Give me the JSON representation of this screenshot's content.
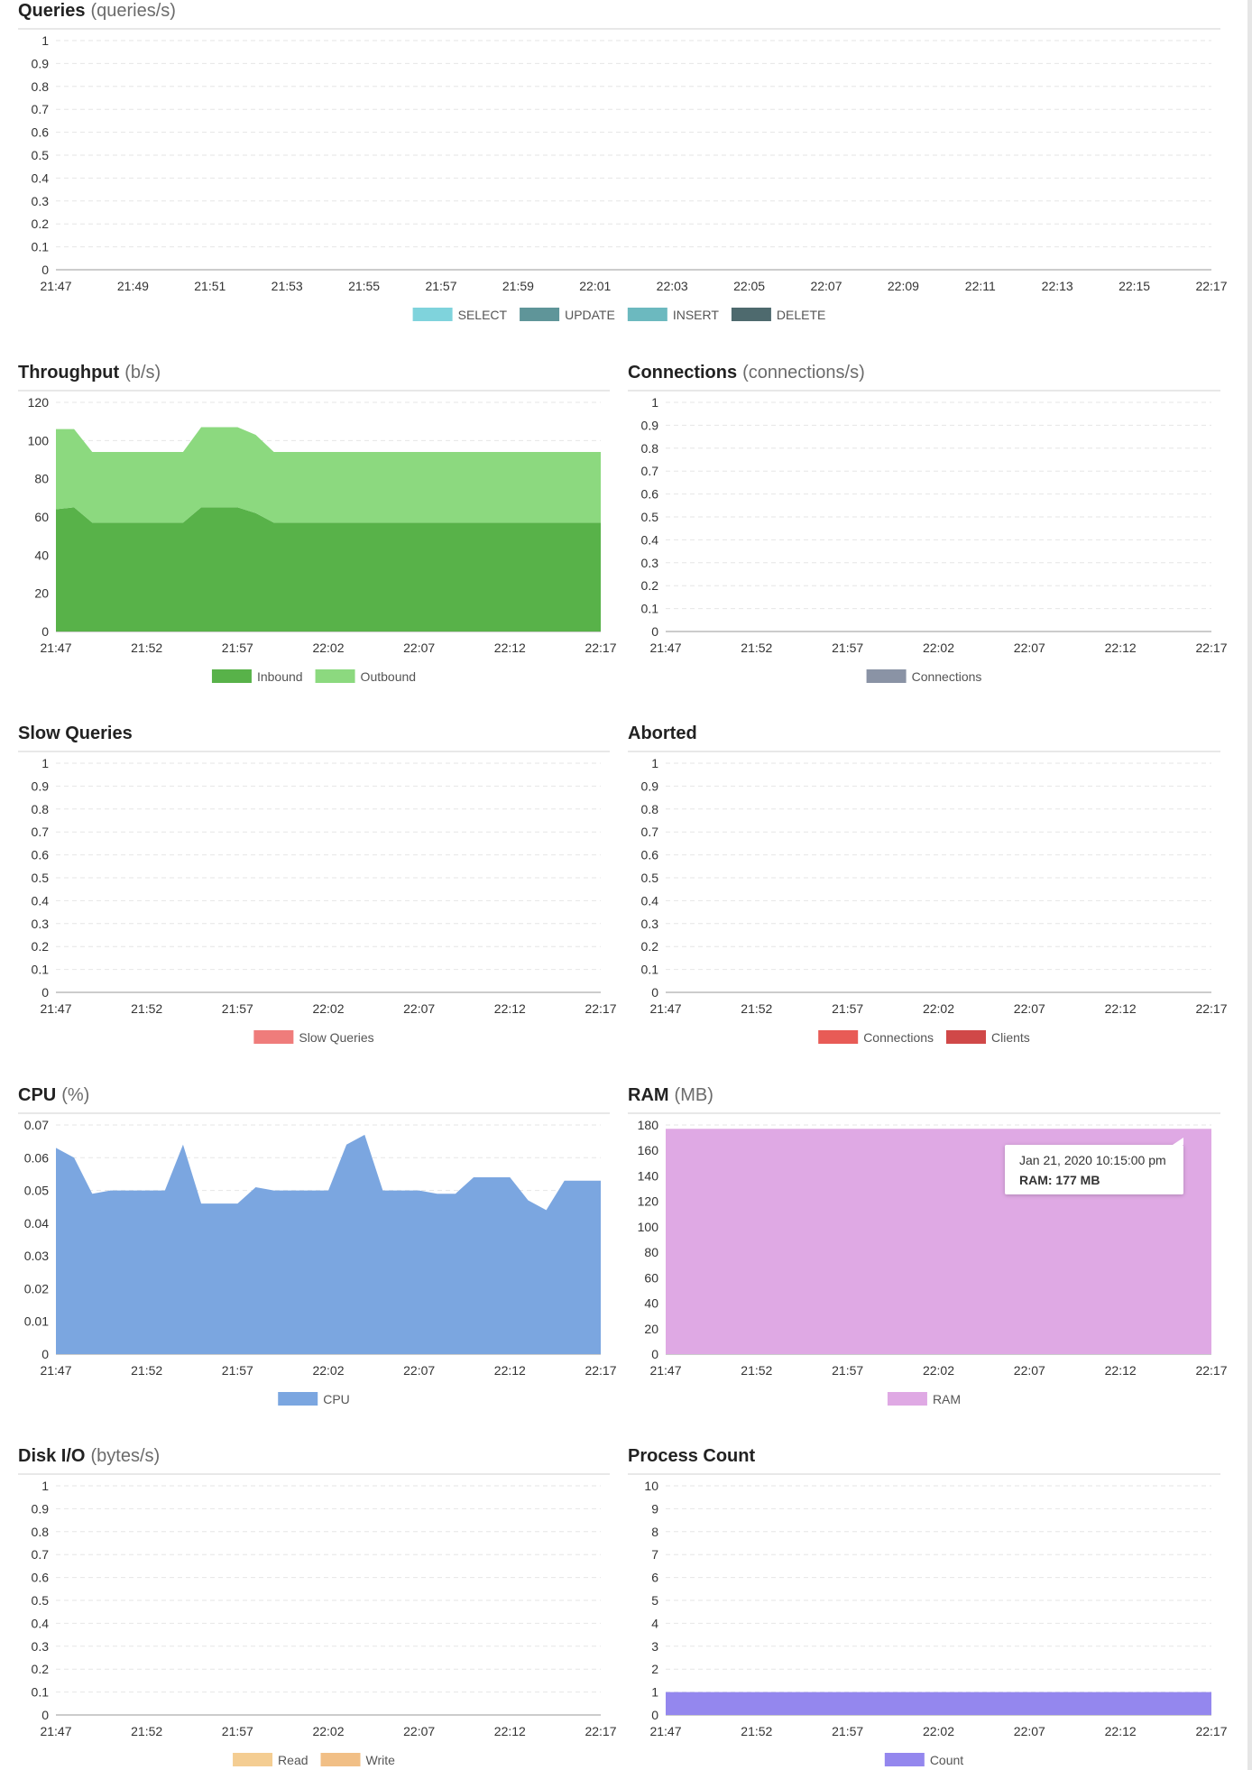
{
  "chart_data": [
    {
      "type": "area",
      "title": "Queries",
      "unit": "(queries/s)",
      "x": [
        "21:47",
        "21:48",
        "21:49",
        "21:50",
        "21:51",
        "21:52",
        "21:53",
        "21:54",
        "21:55",
        "21:56",
        "21:57",
        "21:58",
        "21:59",
        "22:00",
        "22:01",
        "22:02",
        "22:03",
        "22:04",
        "22:05",
        "22:06",
        "22:07",
        "22:08",
        "22:09",
        "22:10",
        "22:11",
        "22:12",
        "22:13",
        "22:14",
        "22:15",
        "22:16",
        "22:17"
      ],
      "xticks": [
        "21:47",
        "21:49",
        "21:51",
        "21:53",
        "21:55",
        "21:57",
        "21:59",
        "22:01",
        "22:03",
        "22:05",
        "22:07",
        "22:09",
        "22:11",
        "22:13",
        "22:15",
        "22:17"
      ],
      "ylim": [
        0,
        1
      ],
      "yticks": [
        0,
        0.1,
        0.2,
        0.3,
        0.4,
        0.5,
        0.6,
        0.7,
        0.8,
        0.9,
        1
      ],
      "grid": true,
      "series": [
        {
          "name": "SELECT",
          "color": "#7fd3dc",
          "values": [
            0,
            0,
            0,
            0,
            0,
            0,
            0,
            0,
            0,
            0,
            0,
            0,
            0,
            0,
            0,
            0,
            0,
            0,
            0,
            0,
            0,
            0,
            0,
            0,
            0,
            0,
            0,
            0,
            0,
            0,
            0
          ]
        },
        {
          "name": "UPDATE",
          "color": "#5f9599",
          "values": [
            0,
            0,
            0,
            0,
            0,
            0,
            0,
            0,
            0,
            0,
            0,
            0,
            0,
            0,
            0,
            0,
            0,
            0,
            0,
            0,
            0,
            0,
            0,
            0,
            0,
            0,
            0,
            0,
            0,
            0,
            0
          ]
        },
        {
          "name": "INSERT",
          "color": "#6cb9bf",
          "values": [
            0,
            0,
            0,
            0,
            0,
            0,
            0,
            0,
            0,
            0,
            0,
            0,
            0,
            0,
            0,
            0,
            0,
            0,
            0,
            0,
            0,
            0,
            0,
            0,
            0,
            0,
            0,
            0,
            0,
            0,
            0
          ]
        },
        {
          "name": "DELETE",
          "color": "#4e6a6e",
          "values": [
            0,
            0,
            0,
            0,
            0,
            0,
            0,
            0,
            0,
            0,
            0,
            0,
            0,
            0,
            0,
            0,
            0,
            0,
            0,
            0,
            0,
            0,
            0,
            0,
            0,
            0,
            0,
            0,
            0,
            0,
            0
          ]
        }
      ]
    },
    {
      "type": "area",
      "title": "Throughput",
      "unit": "(b/s)",
      "x": [
        "21:47",
        "21:48",
        "21:49",
        "21:50",
        "21:51",
        "21:52",
        "21:53",
        "21:54",
        "21:55",
        "21:56",
        "21:57",
        "21:58",
        "21:59",
        "22:00",
        "22:01",
        "22:02",
        "22:03",
        "22:04",
        "22:05",
        "22:06",
        "22:07",
        "22:08",
        "22:09",
        "22:10",
        "22:11",
        "22:12",
        "22:13",
        "22:14",
        "22:15",
        "22:16",
        "22:17"
      ],
      "xticks": [
        "21:47",
        "21:52",
        "21:57",
        "22:02",
        "22:07",
        "22:12",
        "22:17"
      ],
      "ylim": [
        0,
        120
      ],
      "yticks": [
        0,
        20,
        40,
        60,
        80,
        100,
        120
      ],
      "grid": true,
      "series": [
        {
          "name": "Inbound",
          "color": "#58b249",
          "values": [
            64,
            65,
            57,
            57,
            57,
            57,
            57,
            57,
            65,
            65,
            65,
            62,
            57,
            57,
            57,
            57,
            57,
            57,
            57,
            57,
            57,
            57,
            57,
            57,
            57,
            57,
            57,
            57,
            57,
            57,
            57
          ]
        },
        {
          "name": "Outbound",
          "color": "#8cd97f",
          "values": [
            42,
            41,
            37,
            37,
            37,
            37,
            37,
            37,
            42,
            42,
            42,
            41,
            37,
            37,
            37,
            37,
            37,
            37,
            37,
            37,
            37,
            37,
            37,
            37,
            37,
            37,
            37,
            37,
            37,
            37,
            37
          ]
        }
      ]
    },
    {
      "type": "area",
      "title": "Connections",
      "unit": "(connections/s)",
      "x": [
        "21:47",
        "21:48",
        "21:49",
        "21:50",
        "21:51",
        "21:52",
        "21:53",
        "21:54",
        "21:55",
        "21:56",
        "21:57",
        "21:58",
        "21:59",
        "22:00",
        "22:01",
        "22:02",
        "22:03",
        "22:04",
        "22:05",
        "22:06",
        "22:07",
        "22:08",
        "22:09",
        "22:10",
        "22:11",
        "22:12",
        "22:13",
        "22:14",
        "22:15",
        "22:16",
        "22:17"
      ],
      "xticks": [
        "21:47",
        "21:52",
        "21:57",
        "22:02",
        "22:07",
        "22:12",
        "22:17"
      ],
      "ylim": [
        0,
        1
      ],
      "yticks": [
        0,
        0.1,
        0.2,
        0.3,
        0.4,
        0.5,
        0.6,
        0.7,
        0.8,
        0.9,
        1
      ],
      "grid": true,
      "series": [
        {
          "name": "Connections",
          "color": "#8a93a5",
          "values": [
            0,
            0,
            0,
            0,
            0,
            0,
            0,
            0,
            0,
            0,
            0,
            0,
            0,
            0,
            0,
            0,
            0,
            0,
            0,
            0,
            0,
            0,
            0,
            0,
            0,
            0,
            0,
            0,
            0,
            0,
            0
          ]
        }
      ]
    },
    {
      "type": "area",
      "title": "Slow Queries",
      "x": [
        "21:47",
        "21:48",
        "21:49",
        "21:50",
        "21:51",
        "21:52",
        "21:53",
        "21:54",
        "21:55",
        "21:56",
        "21:57",
        "21:58",
        "21:59",
        "22:00",
        "22:01",
        "22:02",
        "22:03",
        "22:04",
        "22:05",
        "22:06",
        "22:07",
        "22:08",
        "22:09",
        "22:10",
        "22:11",
        "22:12",
        "22:13",
        "22:14",
        "22:15",
        "22:16",
        "22:17"
      ],
      "xticks": [
        "21:47",
        "21:52",
        "21:57",
        "22:02",
        "22:07",
        "22:12",
        "22:17"
      ],
      "ylim": [
        0,
        1
      ],
      "yticks": [
        0,
        0.1,
        0.2,
        0.3,
        0.4,
        0.5,
        0.6,
        0.7,
        0.8,
        0.9,
        1
      ],
      "grid": true,
      "series": [
        {
          "name": "Slow Queries",
          "color": "#ef7c7b",
          "values": [
            0,
            0,
            0,
            0,
            0,
            0,
            0,
            0,
            0,
            0,
            0,
            0,
            0,
            0,
            0,
            0,
            0,
            0,
            0,
            0,
            0,
            0,
            0,
            0,
            0,
            0,
            0,
            0,
            0,
            0,
            0
          ]
        }
      ]
    },
    {
      "type": "area",
      "title": "Aborted",
      "x": [
        "21:47",
        "21:48",
        "21:49",
        "21:50",
        "21:51",
        "21:52",
        "21:53",
        "21:54",
        "21:55",
        "21:56",
        "21:57",
        "21:58",
        "21:59",
        "22:00",
        "22:01",
        "22:02",
        "22:03",
        "22:04",
        "22:05",
        "22:06",
        "22:07",
        "22:08",
        "22:09",
        "22:10",
        "22:11",
        "22:12",
        "22:13",
        "22:14",
        "22:15",
        "22:16",
        "22:17"
      ],
      "xticks": [
        "21:47",
        "21:52",
        "21:57",
        "22:02",
        "22:07",
        "22:12",
        "22:17"
      ],
      "ylim": [
        0,
        1
      ],
      "yticks": [
        0,
        0.1,
        0.2,
        0.3,
        0.4,
        0.5,
        0.6,
        0.7,
        0.8,
        0.9,
        1
      ],
      "grid": true,
      "series": [
        {
          "name": "Connections",
          "color": "#e85b56",
          "values": [
            0,
            0,
            0,
            0,
            0,
            0,
            0,
            0,
            0,
            0,
            0,
            0,
            0,
            0,
            0,
            0,
            0,
            0,
            0,
            0,
            0,
            0,
            0,
            0,
            0,
            0,
            0,
            0,
            0,
            0,
            0
          ]
        },
        {
          "name": "Clients",
          "color": "#d04848",
          "values": [
            0,
            0,
            0,
            0,
            0,
            0,
            0,
            0,
            0,
            0,
            0,
            0,
            0,
            0,
            0,
            0,
            0,
            0,
            0,
            0,
            0,
            0,
            0,
            0,
            0,
            0,
            0,
            0,
            0,
            0,
            0
          ]
        }
      ]
    },
    {
      "type": "area",
      "title": "CPU",
      "unit": "(%)",
      "x": [
        "21:47",
        "21:48",
        "21:49",
        "21:50",
        "21:51",
        "21:52",
        "21:53",
        "21:54",
        "21:55",
        "21:56",
        "21:57",
        "21:58",
        "21:59",
        "22:00",
        "22:01",
        "22:02",
        "22:03",
        "22:04",
        "22:05",
        "22:06",
        "22:07",
        "22:08",
        "22:09",
        "22:10",
        "22:11",
        "22:12",
        "22:13",
        "22:14",
        "22:15",
        "22:16",
        "22:17"
      ],
      "xticks": [
        "21:47",
        "21:52",
        "21:57",
        "22:02",
        "22:07",
        "22:12",
        "22:17"
      ],
      "ylim": [
        0,
        0.07
      ],
      "yticks": [
        0,
        0.01,
        0.02,
        0.03,
        0.04,
        0.05,
        0.06,
        0.07
      ],
      "grid": true,
      "series": [
        {
          "name": "CPU",
          "color": "#7ba6e0",
          "values": [
            0.063,
            0.06,
            0.049,
            0.05,
            0.05,
            0.05,
            0.05,
            0.064,
            0.046,
            0.046,
            0.046,
            0.051,
            0.05,
            0.05,
            0.05,
            0.05,
            0.064,
            0.067,
            0.05,
            0.05,
            0.05,
            0.049,
            0.049,
            0.054,
            0.054,
            0.054,
            0.047,
            0.044,
            0.053,
            0.053,
            0.053
          ]
        }
      ]
    },
    {
      "type": "area",
      "title": "RAM",
      "unit": "(MB)",
      "x": [
        "21:47",
        "21:48",
        "21:49",
        "21:50",
        "21:51",
        "21:52",
        "21:53",
        "21:54",
        "21:55",
        "21:56",
        "21:57",
        "21:58",
        "21:59",
        "22:00",
        "22:01",
        "22:02",
        "22:03",
        "22:04",
        "22:05",
        "22:06",
        "22:07",
        "22:08",
        "22:09",
        "22:10",
        "22:11",
        "22:12",
        "22:13",
        "22:14",
        "22:15",
        "22:16",
        "22:17"
      ],
      "xticks": [
        "21:47",
        "21:52",
        "21:57",
        "22:02",
        "22:07",
        "22:12",
        "22:17"
      ],
      "ylim": [
        0,
        180
      ],
      "yticks": [
        0,
        20,
        40,
        60,
        80,
        100,
        120,
        140,
        160,
        180
      ],
      "grid": true,
      "series": [
        {
          "name": "RAM",
          "color": "#dfa9e4",
          "values": [
            177,
            177,
            177,
            177,
            177,
            177,
            177,
            177,
            177,
            177,
            177,
            177,
            177,
            177,
            177,
            177,
            177,
            177,
            177,
            177,
            177,
            177,
            177,
            177,
            177,
            177,
            177,
            177,
            177,
            177,
            177
          ]
        }
      ],
      "tooltip": {
        "title": "Jan 21, 2020 10:15:00 pm",
        "label": "RAM: 177 MB"
      }
    },
    {
      "type": "area",
      "title": "Disk I/O",
      "unit": "(bytes/s)",
      "x": [
        "21:47",
        "21:48",
        "21:49",
        "21:50",
        "21:51",
        "21:52",
        "21:53",
        "21:54",
        "21:55",
        "21:56",
        "21:57",
        "21:58",
        "21:59",
        "22:00",
        "22:01",
        "22:02",
        "22:03",
        "22:04",
        "22:05",
        "22:06",
        "22:07",
        "22:08",
        "22:09",
        "22:10",
        "22:11",
        "22:12",
        "22:13",
        "22:14",
        "22:15",
        "22:16",
        "22:17"
      ],
      "xticks": [
        "21:47",
        "21:52",
        "21:57",
        "22:02",
        "22:07",
        "22:12",
        "22:17"
      ],
      "ylim": [
        0,
        1
      ],
      "yticks": [
        0,
        0.1,
        0.2,
        0.3,
        0.4,
        0.5,
        0.6,
        0.7,
        0.8,
        0.9,
        1
      ],
      "grid": true,
      "series": [
        {
          "name": "Read",
          "color": "#f4cd92",
          "values": [
            0,
            0,
            0,
            0,
            0,
            0,
            0,
            0,
            0,
            0,
            0,
            0,
            0,
            0,
            0,
            0,
            0,
            0,
            0,
            0,
            0,
            0,
            0,
            0,
            0,
            0,
            0,
            0,
            0,
            0,
            0
          ]
        },
        {
          "name": "Write",
          "color": "#f1bf86",
          "values": [
            0,
            0,
            0,
            0,
            0,
            0,
            0,
            0,
            0,
            0,
            0,
            0,
            0,
            0,
            0,
            0,
            0,
            0,
            0,
            0,
            0,
            0,
            0,
            0,
            0,
            0,
            0,
            0,
            0,
            0,
            0
          ]
        }
      ]
    },
    {
      "type": "area",
      "title": "Process Count",
      "x": [
        "21:47",
        "21:48",
        "21:49",
        "21:50",
        "21:51",
        "21:52",
        "21:53",
        "21:54",
        "21:55",
        "21:56",
        "21:57",
        "21:58",
        "21:59",
        "22:00",
        "22:01",
        "22:02",
        "22:03",
        "22:04",
        "22:05",
        "22:06",
        "22:07",
        "22:08",
        "22:09",
        "22:10",
        "22:11",
        "22:12",
        "22:13",
        "22:14",
        "22:15",
        "22:16",
        "22:17"
      ],
      "xticks": [
        "21:47",
        "21:52",
        "21:57",
        "22:02",
        "22:07",
        "22:12",
        "22:17"
      ],
      "ylim": [
        0,
        10
      ],
      "yticks": [
        0,
        1,
        2,
        3,
        4,
        5,
        6,
        7,
        8,
        9,
        10
      ],
      "grid": true,
      "series": [
        {
          "name": "Count",
          "color": "#9487ee",
          "values": [
            1,
            1,
            1,
            1,
            1,
            1,
            1,
            1,
            1,
            1,
            1,
            1,
            1,
            1,
            1,
            1,
            1,
            1,
            1,
            1,
            1,
            1,
            1,
            1,
            1,
            1,
            1,
            1,
            1,
            1,
            1
          ]
        }
      ]
    }
  ]
}
